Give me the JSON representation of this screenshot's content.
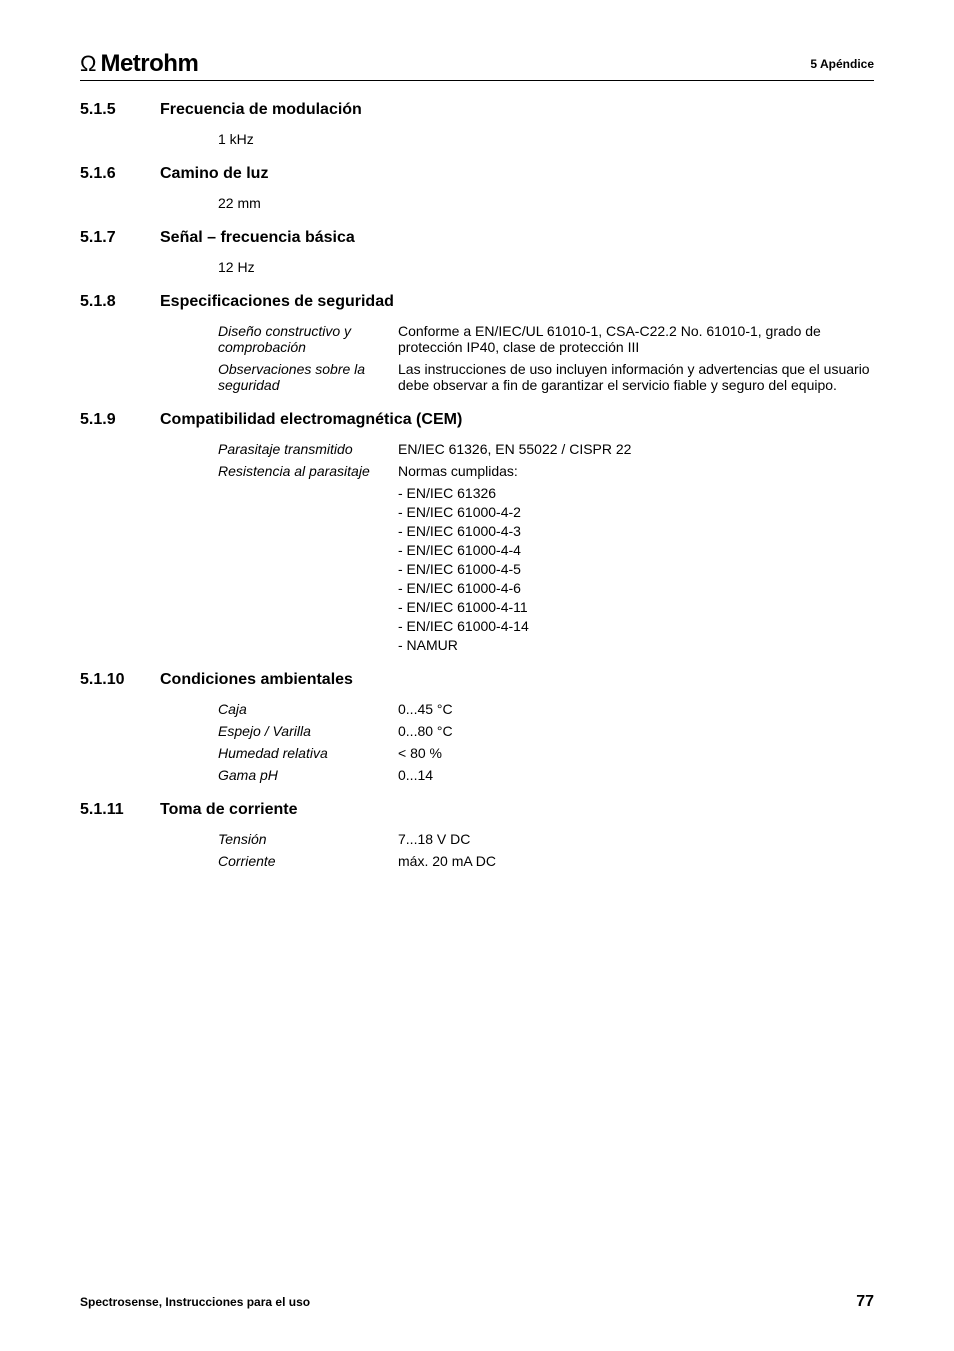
{
  "header": {
    "logo_symbol": "Ω",
    "logo_text": "Metrohm",
    "chapter": "5 Apéndice"
  },
  "sections": [
    {
      "number": "5.1.5",
      "title": "Frecuencia de modulación",
      "simple_content": "1 kHz"
    },
    {
      "number": "5.1.6",
      "title": "Camino de luz",
      "simple_content": "22 mm"
    },
    {
      "number": "5.1.7",
      "title": "Señal – frecuencia básica",
      "simple_content": "12 Hz"
    },
    {
      "number": "5.1.8",
      "title": "Especificaciones de seguridad",
      "specs": [
        {
          "label": "Diseño constructivo y comprobación",
          "value": "Conforme a EN/IEC/UL 61010-1, CSA-C22.2 No. 61010-1, grado de protección IP40, clase de protección III"
        },
        {
          "label": "Observaciones sobre la seguridad",
          "value": "Las instrucciones de uso incluyen información y advertencias que el usuario debe observar a fin de garantizar el servicio fiable y seguro del equipo."
        }
      ]
    },
    {
      "number": "5.1.9",
      "title": "Compatibilidad electromagnética (CEM)",
      "specs": [
        {
          "label": "Parasitaje transmitido",
          "value": "EN/IEC 61326, EN 55022 / CISPR 22"
        },
        {
          "label": "Resistencia al parasitaje",
          "value": "Normas cumplidas:"
        }
      ],
      "list_items": [
        "- EN/IEC 61326",
        "- EN/IEC 61000-4-2",
        "- EN/IEC 61000-4-3",
        "- EN/IEC 61000-4-4",
        "- EN/IEC 61000-4-5",
        "- EN/IEC 61000-4-6",
        "- EN/IEC 61000-4-11",
        "- EN/IEC 61000-4-14",
        "- NAMUR"
      ]
    },
    {
      "number": "5.1.10",
      "title": "Condiciones ambientales",
      "specs": [
        {
          "label": "Caja",
          "value": "0...45 °C"
        },
        {
          "label": "Espejo / Varilla",
          "value": "0...80 °C"
        },
        {
          "label": "Humedad relativa",
          "value": "< 80 %"
        },
        {
          "label": "Gama pH",
          "value": "0...14"
        }
      ]
    },
    {
      "number": "5.1.11",
      "title": "Toma de corriente",
      "specs": [
        {
          "label": "Tensión",
          "value": "7...18 V DC"
        },
        {
          "label": "Corriente",
          "value": "máx. 20 mA DC"
        }
      ]
    }
  ],
  "footer": {
    "text": "Spectrosense, Instrucciones para el uso",
    "page": "77"
  }
}
